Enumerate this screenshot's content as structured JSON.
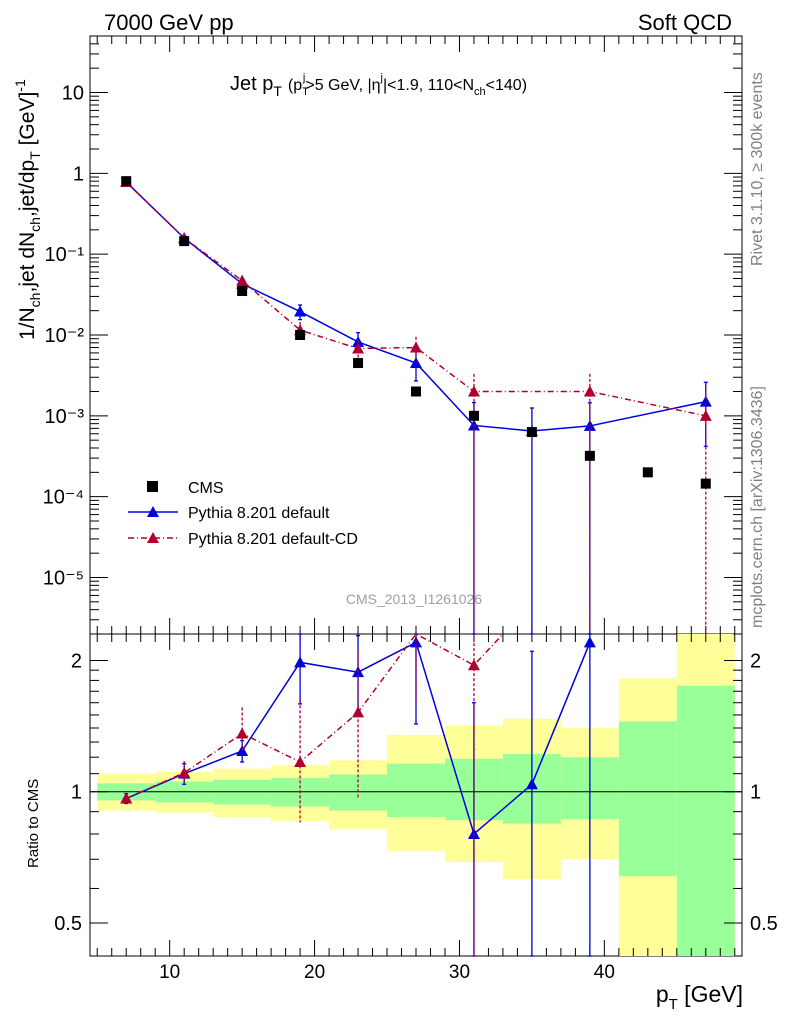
{
  "header": {
    "left": "7000 GeV pp",
    "right": "Soft QCD"
  },
  "plot_title": {
    "main": "Jet p",
    "main_sub": "T",
    "cond_open": "(p",
    "cond_sub": "T",
    "cond_sup": "j",
    "cond_mid": ">5 GeV, |η",
    "cond_sup2": "j",
    "cond_mid2": "|<1.9, 110<N",
    "cond_sub2": "ch",
    "cond_close": "<140)"
  },
  "y_label": {
    "text": "1/N",
    "sub1": "ch",
    "text2": ",jet dN",
    "sub2": "ch",
    "text3": ",jet/dp",
    "sub3": "T",
    "text4": " [GeV]",
    "sup": "-1"
  },
  "ratio_ylabel": "Ratio to CMS",
  "x_label": {
    "text": "p",
    "sub": "T",
    "unit": " [GeV]"
  },
  "watermark": "CMS_2013_I1261026",
  "side_labels": {
    "rivet": "Rivet 3.1.10, ≥ 300k events",
    "mcplots": "mcplots.cern.ch [arXiv:1306.3436]"
  },
  "legend": [
    {
      "label": "CMS",
      "style": "square-marker"
    },
    {
      "label": "Pythia 8.201 default",
      "style": "blue-line-triangle"
    },
    {
      "label": "Pythia 8.201 default-CD",
      "style": "red-dashdot-triangle"
    }
  ],
  "colors": {
    "data": "#000000",
    "default": "#0000dd",
    "cd": "#b00030",
    "band_green": "#99ff99",
    "band_yellow": "#ffff99"
  },
  "chart_data": [
    {
      "type": "scatter",
      "panel": "main",
      "title": "Jet pT (pTj>5 GeV, |ηj|<1.9, 110<Nch<140)",
      "xlabel": "pT [GeV]",
      "ylabel": "1/Nch,jet dNch,jet/dpT [GeV]^-1",
      "xlim": [
        4.5,
        49.5
      ],
      "ylim": [
        2e-06,
        50
      ],
      "yscale": "log",
      "y_tick_labels": [
        "10⁻⁵",
        "10⁻⁴",
        "10⁻³",
        "10⁻²",
        "10⁻¹",
        "1",
        "10"
      ],
      "x_tick_labels": [
        "10",
        "20",
        "30",
        "40"
      ],
      "series": [
        {
          "name": "CMS",
          "x": [
            7,
            11,
            15,
            19,
            23,
            27,
            31,
            35,
            39,
            43,
            47
          ],
          "y": [
            0.8,
            0.145,
            0.035,
            0.01,
            0.0045,
            0.002,
            0.001,
            0.00063,
            0.00032,
            0.0002,
            0.000145
          ]
        },
        {
          "name": "Pythia 8.201 default",
          "x": [
            7,
            11,
            15,
            19,
            23,
            27,
            31,
            35,
            39,
            47
          ],
          "y": [
            0.78,
            0.158,
            0.043,
            0.0195,
            0.0082,
            0.0045,
            0.00076,
            0.00065,
            0.00075,
            0.0015
          ],
          "err_low": [
            0.02,
            0.01,
            0.004,
            0.004,
            0.002,
            0.0018,
            0.00076,
            0.00065,
            0.00075,
            0.00108
          ],
          "err_high": [
            0.02,
            0.01,
            0.004,
            0.004,
            0.0025,
            0.0018,
            0.0007,
            0.0006,
            0.0007,
            0.0011
          ]
        },
        {
          "name": "Pythia 8.201 default-CD",
          "x": [
            7,
            11,
            15,
            19,
            23,
            27,
            31,
            39,
            47
          ],
          "y": [
            0.78,
            0.158,
            0.047,
            0.0115,
            0.0068,
            0.007,
            0.002,
            0.002,
            0.001
          ],
          "err_low": [
            0.02,
            0.01,
            0.006,
            0.003,
            0.002,
            0.0025,
            0.002,
            0.002,
            0.001
          ],
          "err_high": [
            0.02,
            0.01,
            0.006,
            0.003,
            0.002,
            0.0025,
            0.0013,
            0.0013,
            0.0013
          ]
        }
      ]
    },
    {
      "type": "line",
      "panel": "ratio",
      "ylabel": "Ratio to CMS",
      "xlabel": "pT [GeV]",
      "xlim": [
        4.5,
        49.5
      ],
      "ylim": [
        0.42,
        2.3
      ],
      "yscale": "log",
      "y_tick_labels": [
        "0.5",
        "1",
        "2"
      ],
      "bands": {
        "bins": [
          [
            5,
            9
          ],
          [
            9,
            13
          ],
          [
            13,
            17
          ],
          [
            17,
            21
          ],
          [
            21,
            25
          ],
          [
            25,
            29
          ],
          [
            29,
            33
          ],
          [
            33,
            37
          ],
          [
            37,
            41
          ],
          [
            41,
            45
          ],
          [
            45,
            49
          ]
        ],
        "green_low": [
          0.955,
          0.945,
          0.935,
          0.925,
          0.905,
          0.875,
          0.86,
          0.845,
          0.865,
          0.64,
          0.42
        ],
        "green_high": [
          1.045,
          1.055,
          1.065,
          1.075,
          1.095,
          1.16,
          1.19,
          1.22,
          1.2,
          1.45,
          1.75
        ],
        "yellow_low": [
          0.905,
          0.895,
          0.875,
          0.855,
          0.82,
          0.73,
          0.69,
          0.63,
          0.7,
          0.42,
          0.42
        ],
        "yellow_high": [
          1.1,
          1.11,
          1.13,
          1.15,
          1.18,
          1.35,
          1.42,
          1.47,
          1.4,
          1.82,
          2.3
        ]
      },
      "series": [
        {
          "name": "Pythia 8.201 default",
          "x": [
            7,
            11,
            15,
            19,
            23,
            27,
            31,
            35,
            39
          ],
          "y": [
            0.965,
            1.1,
            1.24,
            1.98,
            1.88,
            2.2,
            0.8,
            1.04,
            2.2
          ],
          "err_low": [
            0.025,
            0.06,
            0.07,
            0.39,
            0.35,
            0.77,
            0.38,
            0.62,
            1.78
          ],
          "err_high": [
            0.025,
            0.06,
            0.07,
            0.37,
            0.4,
            0.3,
            0.8,
            1.06,
            0.3
          ]
        },
        {
          "name": "Pythia 8.201 default-CD",
          "x": [
            7,
            11,
            15,
            19,
            23,
            27,
            31
          ],
          "y": [
            0.965,
            1.105,
            1.36,
            1.17,
            1.52,
            2.4,
            1.95
          ],
          "err_low": [
            0.025,
            0.07,
            0.12,
            0.32,
            0.55,
            0.8,
            1.53
          ],
          "err_high": [
            0.025,
            0.07,
            0.2,
            0.45,
            0.6,
            0.6,
            0.3
          ]
        }
      ]
    }
  ]
}
